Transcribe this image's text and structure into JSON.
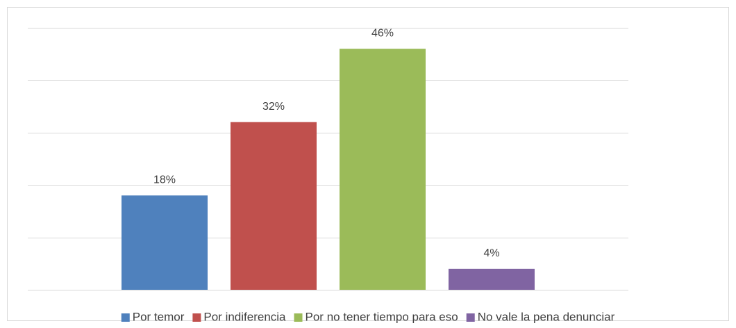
{
  "chart_data": {
    "type": "bar",
    "series": [
      {
        "name": "Por temor",
        "color": "#4f81bd",
        "values": [
          18
        ],
        "value_labels": [
          "18%"
        ]
      },
      {
        "name": "Por indiferencia",
        "color": "#c0504d",
        "values": [
          32
        ],
        "value_labels": [
          "32%"
        ]
      },
      {
        "name": "Por no tener tiempo para eso",
        "color": "#9bbb59",
        "values": [
          46
        ],
        "value_labels": [
          "46%"
        ]
      },
      {
        "name": "No vale la pena denunciar",
        "color": "#8064a2",
        "values": [
          4
        ],
        "value_labels": [
          "4%"
        ]
      }
    ],
    "ylim": [
      0,
      50
    ],
    "yticks": [
      0,
      10,
      20,
      30,
      40,
      50
    ],
    "grid": true,
    "legend": "bottom"
  }
}
